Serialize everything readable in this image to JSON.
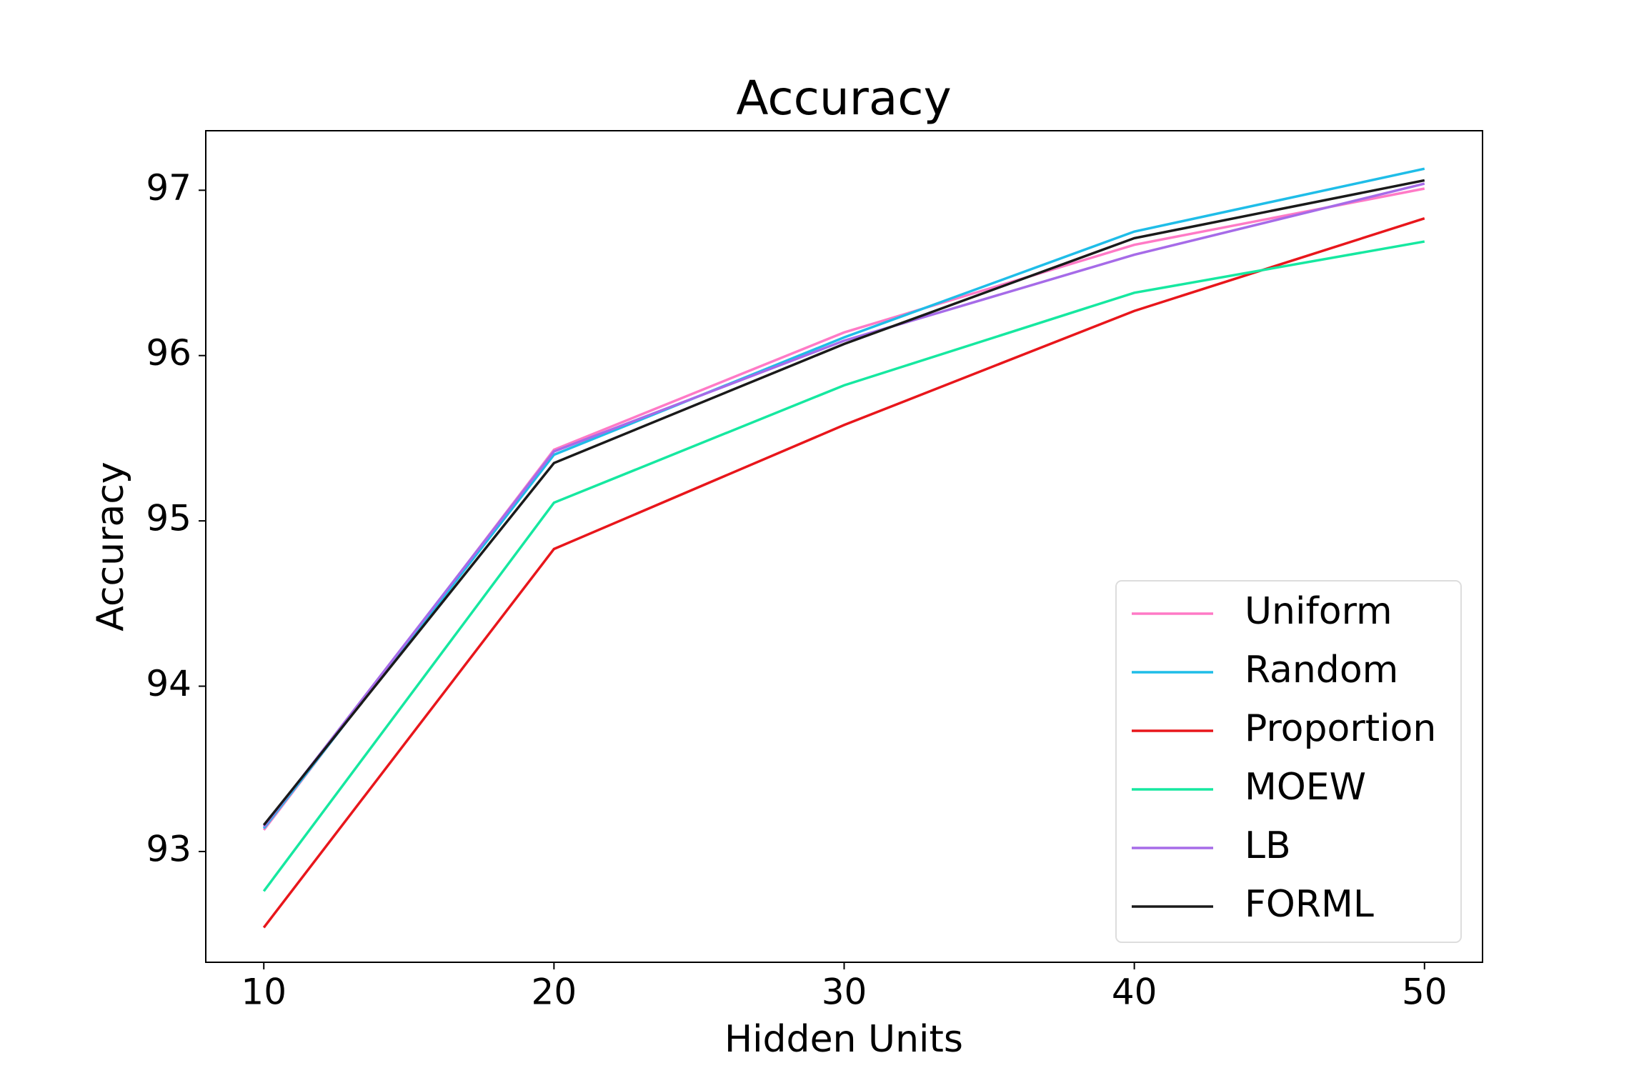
{
  "chart_data": {
    "type": "line",
    "title": "Accuracy",
    "x_label": "Hidden Units",
    "y_label": "Accuracy",
    "x": [
      10,
      20,
      30,
      40,
      50
    ],
    "series": [
      {
        "name": "Uniform",
        "color": "#ff7ac6",
        "values": [
          93.13,
          95.43,
          96.14,
          96.67,
          97.01
        ]
      },
      {
        "name": "Random",
        "color": "#1fbde8",
        "values": [
          93.14,
          95.4,
          96.11,
          96.75,
          97.13
        ]
      },
      {
        "name": "Proportion",
        "color": "#e8161b",
        "values": [
          92.54,
          94.83,
          95.58,
          96.27,
          96.83
        ]
      },
      {
        "name": "MOEW",
        "color": "#16e8a0",
        "values": [
          92.76,
          95.11,
          95.82,
          96.38,
          96.69
        ]
      },
      {
        "name": "LB",
        "color": "#a66be8",
        "values": [
          93.15,
          95.42,
          96.09,
          96.61,
          97.04
        ]
      },
      {
        "name": "FORML",
        "color": "#1a1a1a",
        "values": [
          93.16,
          95.35,
          96.07,
          96.71,
          97.06
        ]
      }
    ],
    "xlim": [
      8,
      52
    ],
    "xticks": [
      10,
      20,
      30,
      40,
      50
    ],
    "ylim": [
      92.33,
      97.36
    ],
    "yticks": [
      93,
      94,
      95,
      96,
      97
    ],
    "grid": false,
    "legend": "lower right"
  }
}
